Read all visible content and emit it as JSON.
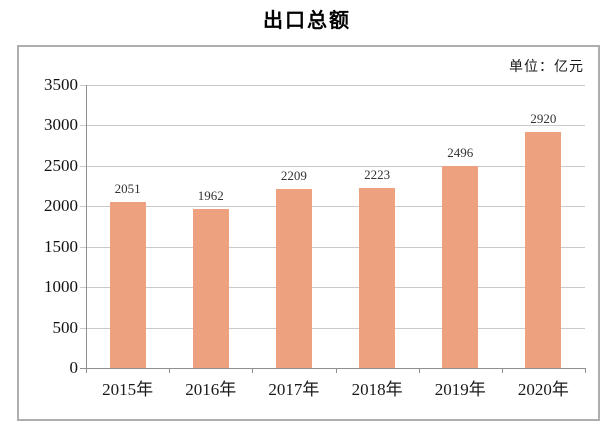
{
  "chart_data": {
    "type": "bar",
    "title": "出口总额",
    "unit": "单位：亿元",
    "categories": [
      "2015年",
      "2016年",
      "2017年",
      "2018年",
      "2019年",
      "2020年"
    ],
    "values": [
      2051,
      1962,
      2209,
      2223,
      2496,
      2920
    ],
    "yticks": [
      0,
      500,
      1000,
      1500,
      2000,
      2500,
      3000,
      3500
    ],
    "ylim": [
      0,
      3500
    ],
    "xlabel": "",
    "ylabel": "",
    "grid": true,
    "legend": "none",
    "data_labels": true,
    "bar_color": "#eda17e",
    "gridline_color": "#c9c9c9",
    "axis_color": "#8f8f8f",
    "frame_color": "#aeaeae"
  }
}
